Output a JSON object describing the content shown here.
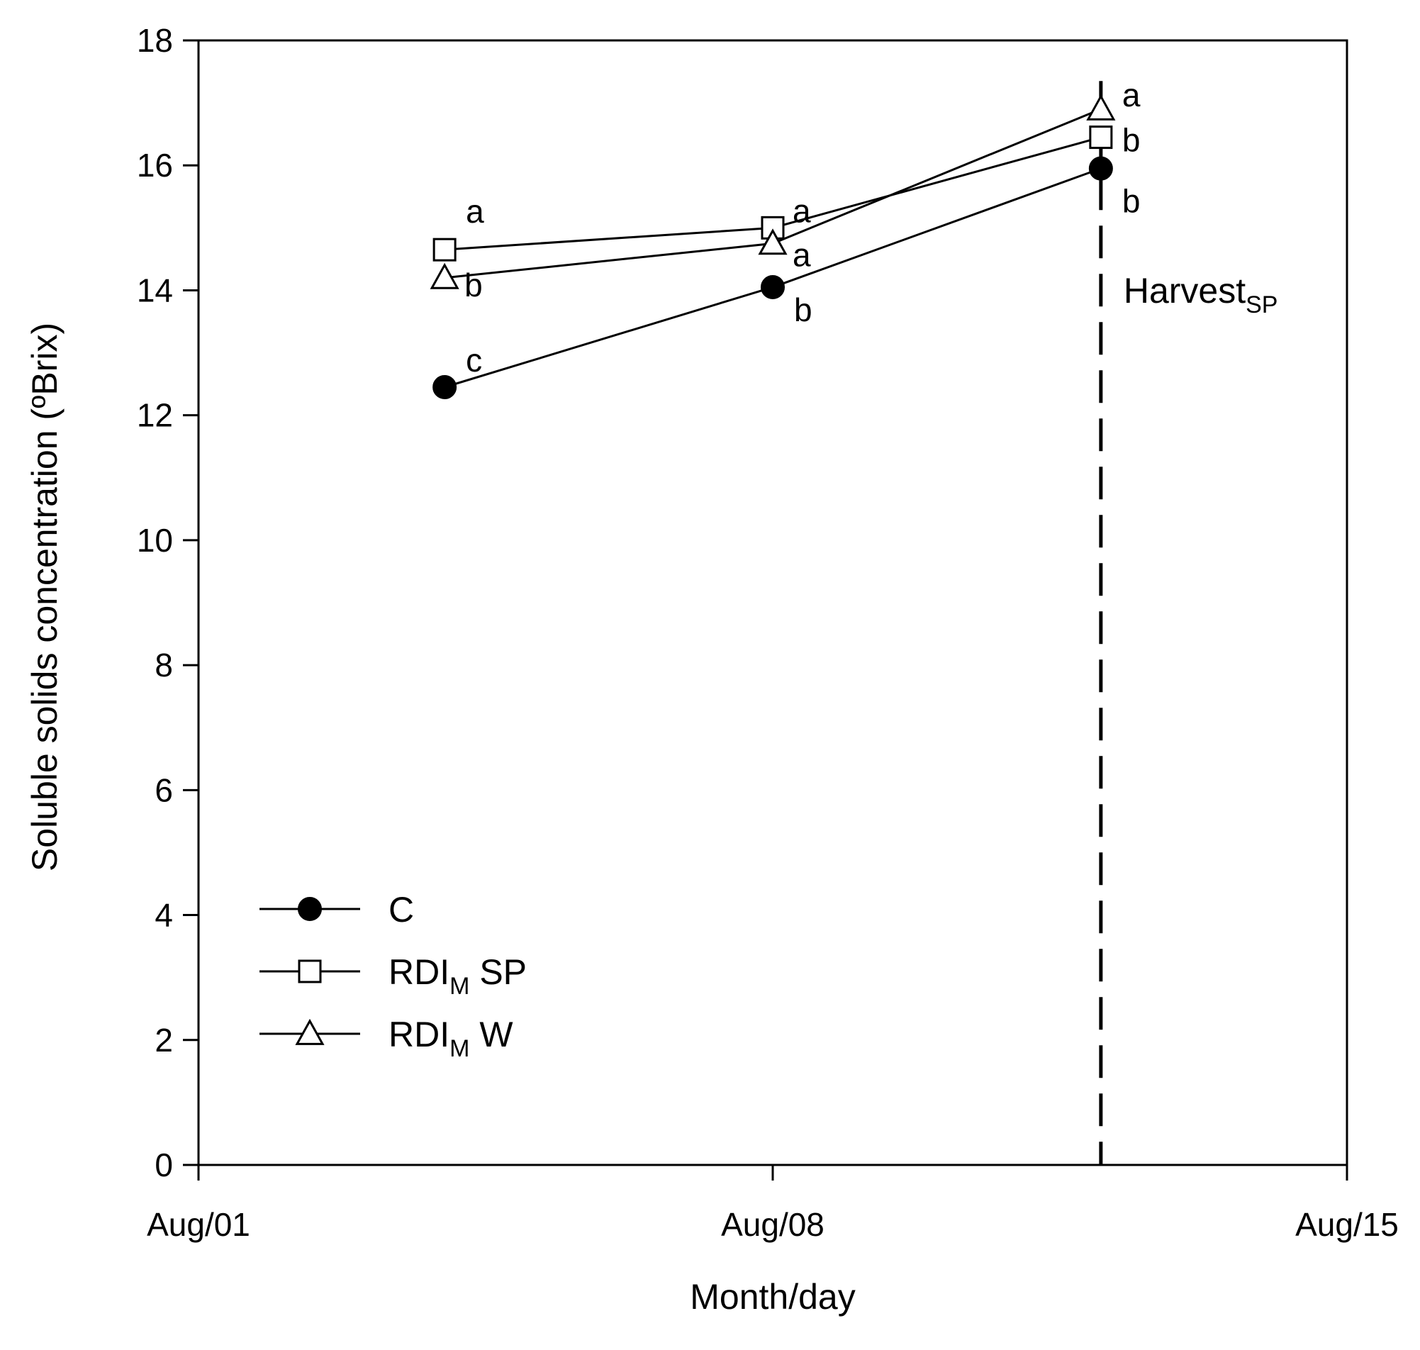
{
  "chart_data": {
    "type": "line",
    "title": "",
    "xlabel": "Month/day",
    "ylabel": "Soluble solids concentration (ºBrix)",
    "x_ticks": [
      {
        "day": 1,
        "label": "Aug/01"
      },
      {
        "day": 8,
        "label": "Aug/08"
      },
      {
        "day": 15,
        "label": "Aug/15"
      }
    ],
    "xlim": [
      1,
      15
    ],
    "ylim": [
      0,
      18
    ],
    "y_ticks": [
      "0",
      "2",
      "4",
      "6",
      "8",
      "10",
      "12",
      "14",
      "16",
      "18"
    ],
    "x": [
      4,
      8,
      12
    ],
    "series": [
      {
        "name": "C",
        "label_main": "C",
        "label_sub": "",
        "label_tail": "",
        "marker": "circle-filled",
        "values": [
          12.45,
          14.05,
          15.95
        ],
        "letters": [
          "c",
          "b",
          "b"
        ]
      },
      {
        "name": "RDIM SP",
        "label_main": "RDI",
        "label_sub": "M",
        "label_tail": " SP",
        "marker": "square-open",
        "values": [
          14.65,
          15.0,
          16.45
        ],
        "letters": [
          "a",
          "a",
          "b"
        ]
      },
      {
        "name": "RDIM W",
        "label_main": "RDI",
        "label_sub": "M",
        "label_tail": " W",
        "marker": "triangle-open",
        "values": [
          14.2,
          14.75,
          16.9
        ],
        "letters": [
          "b",
          "a",
          "a"
        ]
      }
    ],
    "reference_line": {
      "day": 12,
      "style": "dashed",
      "label_main": "Harvest",
      "label_sub": "SP"
    },
    "legend_position": "bottom-left"
  }
}
